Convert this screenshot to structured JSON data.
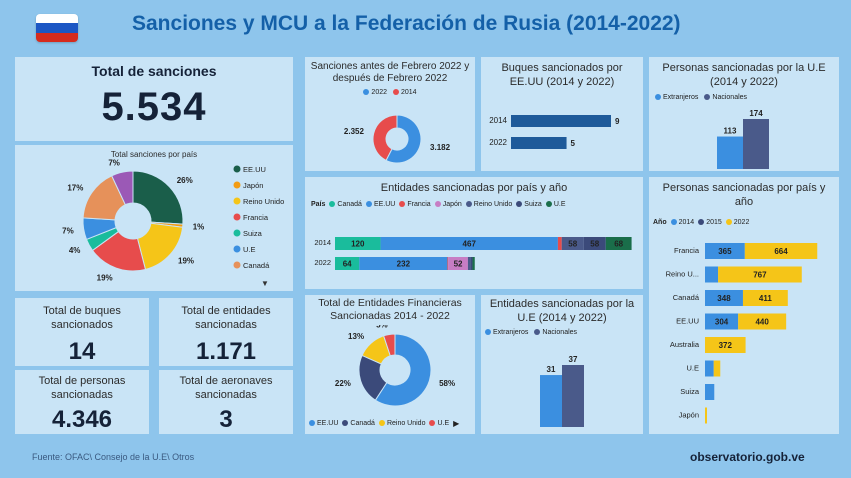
{
  "header": {
    "title": "Sanciones y MCU a la Federación de Rusia (2014-2022)"
  },
  "total": {
    "label": "Total de sanciones",
    "value": "5.534"
  },
  "kpis": {
    "buques_label": "Total de buques sancionados",
    "buques_value": "14",
    "entidades_label": "Total de entidades sancionadas",
    "entidades_value": "1.171",
    "personas_label": "Total de personas sancionadas",
    "personas_value": "4.346",
    "aeronaves_label": "Total de aeronaves sancionadas",
    "aeronaves_value": "3"
  },
  "footer": {
    "source": "Fuente: OFAC\\ Consejo de la U.E\\ Otros",
    "site": "observatorio.gob.ve"
  },
  "colors": {
    "EE.UU": "#2e86de",
    "Japón": "#f39c12",
    "Reino Unido": "#f1c40f",
    "Francia": "#e74c4c",
    "Suiza": "#1abc9c",
    "U.E": "#3b8fe0",
    "Canadá": "#e6915a",
    "Otros": "#9b59b6",
    "Nacional": "#4a5a8a",
    "Extranjero": "#3b8fe0",
    "Usa": "#1e5a9a",
    "y2014": "#3b8fe0",
    "y2015": "#3b4a7a",
    "y2022": "#f5c518"
  },
  "chart_data": [
    {
      "id": "total_por_pais",
      "type": "pie",
      "title": "Total sanciones por país",
      "labels": [
        "EE.UU",
        "Japón",
        "Reino Unido",
        "Francia",
        "Suiza",
        "U.E",
        "Canadá",
        ""
      ],
      "label_texts": [
        "26%",
        "1%",
        "19%",
        "19%",
        "4%",
        "7%",
        "17%",
        "7%"
      ],
      "values": [
        26,
        1,
        19,
        19,
        4,
        7,
        17,
        7
      ],
      "slice_colors": [
        "#1a5e4a",
        "#f39c12",
        "#f5c518",
        "#e74c4c",
        "#1abc9c",
        "#3b8fe0",
        "#e6915a",
        "#9b59b6"
      ],
      "legend": [
        "EE.UU",
        "Japón",
        "Reino Unido",
        "Francia",
        "Suiza",
        "U.E",
        "Canadá"
      ]
    },
    {
      "id": "antes_despues",
      "type": "pie",
      "title": "Sanciones antes de Febrero 2022 y después de Febrero 2022",
      "labels": [
        "2022",
        "2014"
      ],
      "label_texts": [
        "3.182",
        "2.352"
      ],
      "values": [
        3182,
        2352
      ],
      "slice_colors": [
        "#3b8fe0",
        "#e74c4c"
      ]
    },
    {
      "id": "buques",
      "type": "bar",
      "title": "Buques sancionados por EE.UU (2014 y 2022)",
      "categories": [
        "2014",
        "2022"
      ],
      "values": [
        9,
        5
      ]
    },
    {
      "id": "personas_ue",
      "type": "bar",
      "title": "Personas sancionadas por la U.E (2014 y 2022)",
      "legend": [
        "Extranjeros",
        "Nacionales"
      ],
      "values": [
        113,
        174
      ]
    },
    {
      "id": "entidades_pais_anio",
      "type": "bar",
      "title": "Entidades sancionadas por país y año",
      "legend_title": "País",
      "legend": [
        "Canadá",
        "EE.UU",
        "Francia",
        "Japón",
        "Reino Unido",
        "Suiza",
        "U.E"
      ],
      "categories": [
        "2014",
        "2022"
      ],
      "series": [
        {
          "name": "Canadá",
          "values": [
            120,
            64
          ]
        },
        {
          "name": "EE.UU",
          "values": [
            467,
            232
          ]
        },
        {
          "name": "Francia",
          "values": [
            10,
            2
          ]
        },
        {
          "name": "Japón",
          "values": [
            0,
            52
          ]
        },
        {
          "name": "Reino Unido",
          "values": [
            58,
            8
          ]
        },
        {
          "name": "Suiza",
          "values": [
            58,
            4
          ]
        },
        {
          "name": "U.E",
          "values": [
            68,
            6
          ]
        }
      ]
    },
    {
      "id": "entidades_financieras",
      "type": "pie",
      "title": "Total de Entidades Financieras Sancionadas 2014 - 2022",
      "labels": [
        "EE.UU",
        "Canadá",
        "Reino Unido",
        "U.E"
      ],
      "label_texts": [
        "58%",
        "22%",
        "13%",
        "5%"
      ],
      "values": [
        58,
        22,
        13,
        5
      ],
      "slice_colors": [
        "#3b8fe0",
        "#3b4a7a",
        "#f5c518",
        "#e74c4c"
      ]
    },
    {
      "id": "entidades_ue",
      "type": "bar",
      "title": "Entidades sancionadas por la U.E (2014 y 2022)",
      "legend": [
        "Extranjeros",
        "Nacionales"
      ],
      "values": [
        31,
        37
      ]
    },
    {
      "id": "personas_pais_anio",
      "type": "bar",
      "title": "Personas sancionadas por país y año",
      "legend_title": "Año",
      "legend": [
        "2014",
        "2015",
        "2022"
      ],
      "categories": [
        "Francia",
        "Reino U...",
        "Canadá",
        "EE.UU",
        "Australia",
        "U.E",
        "Suiza",
        "Japón"
      ],
      "series": [
        {
          "name": "2014",
          "values": [
            365,
            120,
            348,
            304,
            0,
            80,
            85,
            0
          ]
        },
        {
          "name": "2015",
          "values": [
            0,
            0,
            0,
            0,
            0,
            0,
            0,
            0
          ]
        },
        {
          "name": "2022",
          "values": [
            664,
            767,
            411,
            440,
            372,
            60,
            0,
            5
          ]
        }
      ],
      "labels": [
        [
          "365",
          "",
          "664"
        ],
        [
          "",
          "",
          "767"
        ],
        [
          "348",
          "",
          "411"
        ],
        [
          "304",
          "",
          "440"
        ],
        [
          "",
          "",
          "372"
        ],
        [
          "",
          "",
          ""
        ],
        [
          "",
          "",
          ""
        ],
        [
          "",
          "",
          ""
        ]
      ]
    }
  ]
}
